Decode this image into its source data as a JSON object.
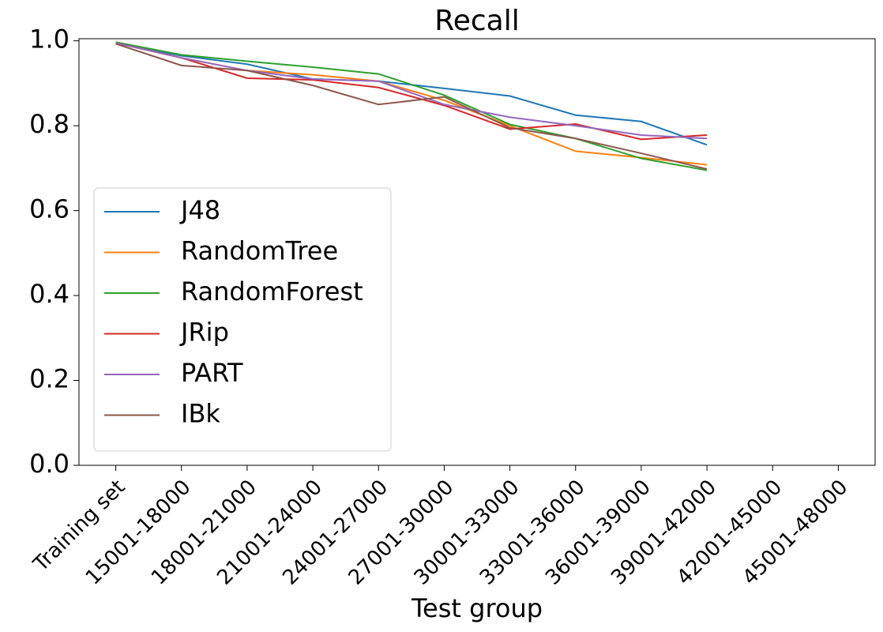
{
  "chart_data": {
    "type": "line",
    "title": "Recall",
    "x_label": "Test group",
    "categories": [
      "Training set",
      "15001-18000",
      "18001-21000",
      "21001-24000",
      "24001-27000",
      "27001-30000",
      "30001-33000",
      "33001-36000",
      "36001-39000",
      "39001-42000",
      "42001-45000",
      "45001-48000"
    ],
    "series": [
      {
        "name": "J48",
        "color": "#1f77b4",
        "values": [
          0.995,
          0.965,
          0.945,
          0.91,
          0.905,
          0.888,
          0.87,
          0.825,
          0.81,
          0.755,
          null,
          null
        ]
      },
      {
        "name": "RandomTree",
        "color": "#ff7f0e",
        "values": [
          0.995,
          0.96,
          0.93,
          0.92,
          0.905,
          0.86,
          0.8,
          0.74,
          0.725,
          0.708,
          null,
          null
        ]
      },
      {
        "name": "RandomForest",
        "color": "#2ca02c",
        "values": [
          0.997,
          0.967,
          0.952,
          0.938,
          0.922,
          0.872,
          0.803,
          0.77,
          0.723,
          0.695,
          null,
          null
        ]
      },
      {
        "name": "JRip",
        "color": "#d62728",
        "values": [
          0.995,
          0.96,
          0.912,
          0.908,
          0.89,
          0.848,
          0.792,
          0.804,
          0.768,
          0.778,
          null,
          null
        ]
      },
      {
        "name": "PART",
        "color": "#9467bd",
        "values": [
          0.995,
          0.96,
          0.93,
          0.91,
          0.905,
          0.85,
          0.82,
          0.8,
          0.778,
          0.77,
          null,
          null
        ]
      },
      {
        "name": "IBk",
        "color": "#8c564b",
        "values": [
          0.993,
          0.942,
          0.93,
          0.895,
          0.85,
          0.868,
          0.795,
          0.77,
          0.735,
          0.698,
          null,
          null
        ]
      }
    ],
    "ylim": [
      0,
      1.005
    ],
    "yticks": [
      {
        "value": 0,
        "label": "0.0"
      },
      0.2,
      0.4,
      0.6,
      0.8,
      {
        "value": 1,
        "label": "1.0"
      }
    ],
    "legend": "lower left"
  }
}
